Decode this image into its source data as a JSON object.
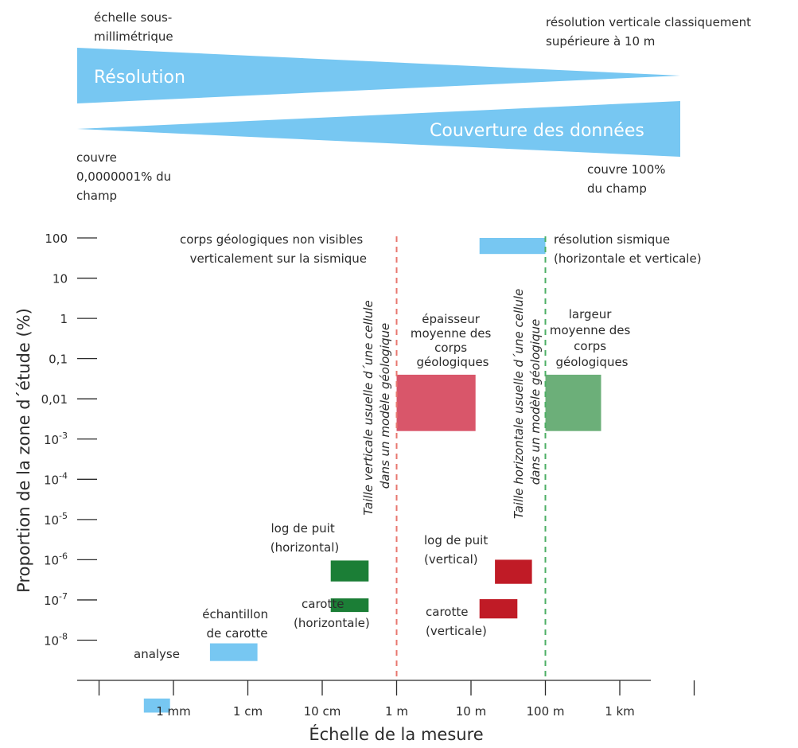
{
  "top_panel": {
    "resolution_label": "Résolution",
    "coverage_label": "Couverture des données",
    "left_resolution_note": [
      "échelle sous-",
      "millimétrique"
    ],
    "right_resolution_note": [
      "résolution verticale classiquement",
      "supérieure à 10 m"
    ],
    "left_coverage_note": [
      "couvre",
      "0,0000001% du",
      "champ"
    ],
    "right_coverage_note": [
      "couvre 100%",
      "du champ"
    ],
    "wedge_color": "#77c7f2"
  },
  "chart_data": {
    "type": "range-boxes",
    "xlabel": "Échelle de la mesure",
    "ylabel": "Proportion de la zone d´étude (%)",
    "x_scale": "log",
    "y_scale": "log",
    "x_tick_labels": [
      "1 mm",
      "1 cm",
      "10 cm",
      "1 m",
      "10 m",
      "100 m",
      "1 km"
    ],
    "y_tick_labels": [
      {
        "base": "100",
        "exp": ""
      },
      {
        "base": "10",
        "exp": ""
      },
      {
        "base": "1",
        "exp": ""
      },
      {
        "base": "0,1",
        "exp": ""
      },
      {
        "base": "0,01",
        "exp": ""
      },
      {
        "base": "10",
        "exp": "-3"
      },
      {
        "base": "10",
        "exp": "-4"
      },
      {
        "base": "10",
        "exp": "-5"
      },
      {
        "base": "10",
        "exp": "-6"
      },
      {
        "base": "10",
        "exp": "-7"
      },
      {
        "base": "10",
        "exp": "-8"
      }
    ],
    "colors": {
      "blue": "#77c7f2",
      "green": "#1b7e36",
      "red": "#c01b26",
      "pink": "#d9566a",
      "lightgreen": "#6caf79"
    },
    "boxes": [
      {
        "id": "analyse",
        "x_m": [
          0.0004,
          0.0009
        ],
        "y_exp": [
          -9.8,
          -9.45
        ],
        "color": "#77c7f2"
      },
      {
        "id": "echantillon",
        "x_m": [
          0.0031,
          0.0135
        ],
        "y_exp": [
          -8.52,
          -8.08
        ],
        "color": "#77c7f2"
      },
      {
        "id": "carotte_h",
        "x_m": [
          0.13,
          0.42
        ],
        "y_exp": [
          -7.3,
          -6.96
        ],
        "color": "#1b7e36"
      },
      {
        "id": "log_h",
        "x_m": [
          0.13,
          0.42
        ],
        "y_exp": [
          -6.54,
          -6.02
        ],
        "color": "#1b7e36"
      },
      {
        "id": "log_v",
        "x_m": [
          21,
          66
        ],
        "y_exp": [
          -6.6,
          -6.0
        ],
        "color": "#c01b26"
      },
      {
        "id": "carotte_v",
        "x_m": [
          13,
          42
        ],
        "y_exp": [
          -7.46,
          -6.98
        ],
        "color": "#c01b26"
      },
      {
        "id": "epaisseur",
        "x_m": [
          1.0,
          11.5
        ],
        "y_exp": [
          -2.8,
          -1.4
        ],
        "color": "#d9566a"
      },
      {
        "id": "largeur",
        "x_m": [
          100,
          560
        ],
        "y_exp": [
          -2.8,
          -1.4
        ],
        "color": "#6caf79"
      },
      {
        "id": "sismique",
        "x_m": [
          13,
          100
        ],
        "y_exp": [
          1.6,
          2.0
        ],
        "color": "#77c7f2"
      }
    ],
    "vlines": [
      {
        "x_m": 1,
        "color": "#e8766e",
        "label": [
          "Taille verticale usuelle d´une cellule",
          "dans un modèle géologique"
        ]
      },
      {
        "x_m": 100,
        "color": "#4caf64",
        "label": [
          "Taille horizontale usuelle d´une cellule",
          "dans un modèle géologique"
        ]
      }
    ],
    "annotations": {
      "analyse": [
        "analyse"
      ],
      "echantillon": [
        "échantillon",
        "de carotte"
      ],
      "log_h": [
        "log de puit",
        "(horizontal)"
      ],
      "carotte_h": [
        "carotte",
        "(horizontale)"
      ],
      "epaisseur": [
        "épaisseur",
        "moyenne des",
        "corps",
        "géologiques"
      ],
      "log_v": [
        "log de puit",
        "(vertical)"
      ],
      "carotte_v": [
        "carotte",
        "(verticale)"
      ],
      "largeur": [
        "largeur",
        "moyenne des",
        "corps",
        "géologiques"
      ],
      "sismique": [
        "résolution sismique",
        "(horizontale et verticale)"
      ],
      "corps_nonvisibles": [
        "corps géologiques non visibles",
        "verticalement sur la  sismique"
      ]
    }
  }
}
